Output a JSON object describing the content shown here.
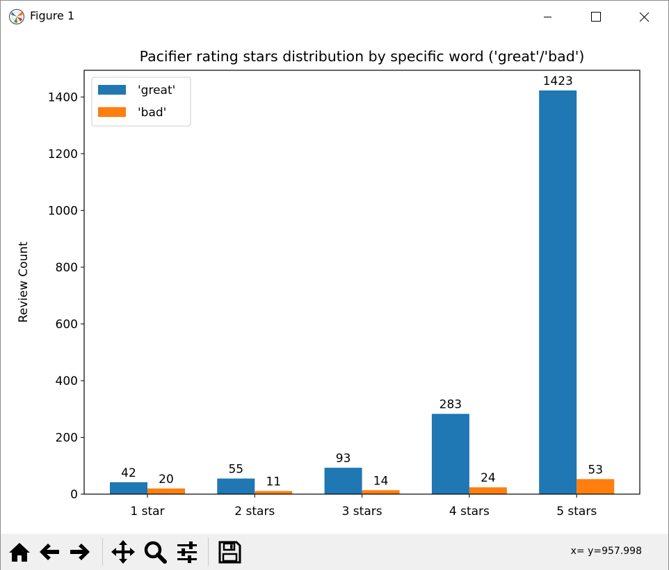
{
  "window": {
    "title": "Figure 1",
    "icons": {
      "app": "matplotlib-icon",
      "minimize": "minimize-icon",
      "maximize": "maximize-icon",
      "close": "close-icon"
    }
  },
  "toolbar": {
    "buttons": [
      {
        "name": "home-icon"
      },
      {
        "name": "back-arrow-icon"
      },
      {
        "name": "forward-arrow-icon"
      },
      {
        "name": "pan-icon"
      },
      {
        "name": "zoom-icon"
      },
      {
        "name": "subplots-config-icon"
      },
      {
        "name": "save-icon"
      }
    ],
    "coords_text": "x= y=957.998"
  },
  "chart_data": {
    "type": "bar",
    "title": "Pacifier rating stars distribution by specific word ('great'/'bad')",
    "xlabel": "",
    "ylabel": "Review Count",
    "categories": [
      "1 star",
      "2 stars",
      "3 stars",
      "4 stars",
      "5 stars"
    ],
    "series": [
      {
        "name": "'great'",
        "color": "#1f77b4",
        "values": [
          42,
          55,
          93,
          283,
          1423
        ]
      },
      {
        "name": "'bad'",
        "color": "#ff7f0e",
        "values": [
          20,
          11,
          14,
          24,
          53
        ]
      }
    ],
    "ylim": [
      0,
      1494
    ],
    "yticks": [
      0,
      200,
      400,
      600,
      800,
      1000,
      1200,
      1400
    ],
    "legend": "upper-left",
    "grid": false
  }
}
